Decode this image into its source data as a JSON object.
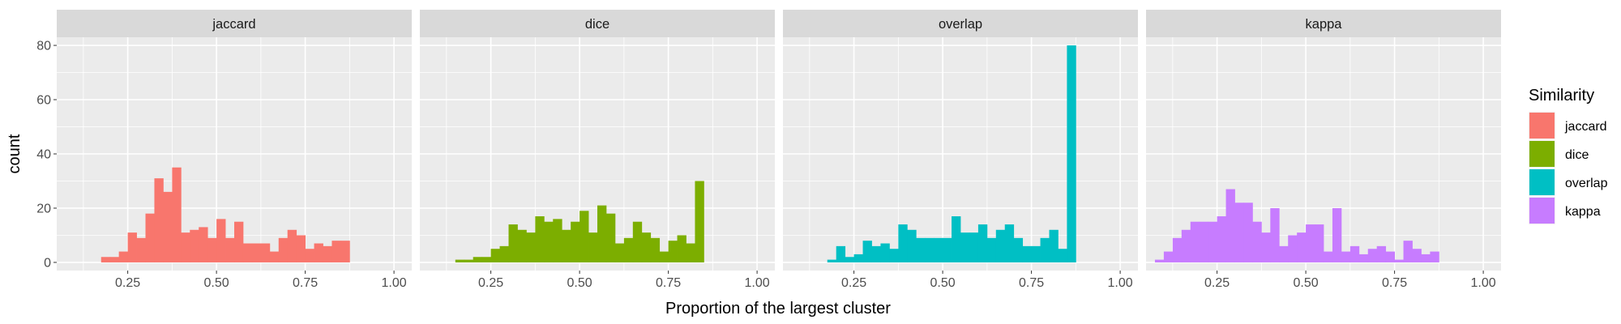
{
  "chart_data": {
    "type": "bar",
    "subtype": "faceted-histogram",
    "xlabel": "Proportion of the largest cluster",
    "ylabel": "count",
    "xlim": [
      0.05,
      1.05
    ],
    "ylim": [
      -3,
      83
    ],
    "xticks": [
      0.25,
      0.5,
      0.75,
      1.0
    ],
    "xtick_labels": [
      "0.25",
      "0.50",
      "0.75",
      "1.00"
    ],
    "yticks": [
      0,
      20,
      40,
      60,
      80
    ],
    "ytick_labels": [
      "0",
      "20",
      "40",
      "60",
      "80"
    ],
    "bin_width": 0.025,
    "grid": true,
    "legend": {
      "title": "Similarity",
      "position": "right",
      "entries": [
        "jaccard",
        "dice",
        "overlap",
        "kappa"
      ]
    },
    "colors": {
      "jaccard": "#F8766D",
      "dice": "#7CAE00",
      "overlap": "#00BFC4",
      "kappa": "#C77CFF"
    },
    "series": [
      {
        "name": "jaccard",
        "bins": [
          [
            0.175,
            2
          ],
          [
            0.2,
            2
          ],
          [
            0.225,
            4
          ],
          [
            0.25,
            11
          ],
          [
            0.275,
            9
          ],
          [
            0.3,
            18
          ],
          [
            0.325,
            31
          ],
          [
            0.35,
            26
          ],
          [
            0.375,
            35
          ],
          [
            0.4,
            11
          ],
          [
            0.425,
            12
          ],
          [
            0.45,
            13
          ],
          [
            0.475,
            9
          ],
          [
            0.5,
            16
          ],
          [
            0.525,
            9
          ],
          [
            0.55,
            15
          ],
          [
            0.575,
            7
          ],
          [
            0.6,
            7
          ],
          [
            0.625,
            7
          ],
          [
            0.65,
            4
          ],
          [
            0.675,
            9
          ],
          [
            0.7,
            12
          ],
          [
            0.725,
            10
          ],
          [
            0.75,
            5
          ],
          [
            0.775,
            7
          ],
          [
            0.8,
            6
          ],
          [
            0.825,
            8
          ],
          [
            0.85,
            8
          ]
        ]
      },
      {
        "name": "dice",
        "bins": [
          [
            0.15,
            1
          ],
          [
            0.175,
            1
          ],
          [
            0.2,
            2
          ],
          [
            0.225,
            2
          ],
          [
            0.25,
            5
          ],
          [
            0.275,
            6
          ],
          [
            0.3,
            14
          ],
          [
            0.325,
            12
          ],
          [
            0.35,
            11
          ],
          [
            0.375,
            17
          ],
          [
            0.4,
            15
          ],
          [
            0.425,
            16
          ],
          [
            0.45,
            12
          ],
          [
            0.475,
            15
          ],
          [
            0.5,
            19
          ],
          [
            0.525,
            11
          ],
          [
            0.55,
            21
          ],
          [
            0.575,
            18
          ],
          [
            0.6,
            7
          ],
          [
            0.625,
            9
          ],
          [
            0.65,
            15
          ],
          [
            0.675,
            11
          ],
          [
            0.7,
            9
          ],
          [
            0.725,
            4
          ],
          [
            0.75,
            8
          ],
          [
            0.775,
            10
          ],
          [
            0.8,
            7
          ],
          [
            0.825,
            30
          ]
        ]
      },
      {
        "name": "overlap",
        "bins": [
          [
            0.175,
            1
          ],
          [
            0.2,
            6
          ],
          [
            0.225,
            2
          ],
          [
            0.25,
            3
          ],
          [
            0.275,
            8
          ],
          [
            0.3,
            6
          ],
          [
            0.325,
            7
          ],
          [
            0.35,
            5
          ],
          [
            0.375,
            14
          ],
          [
            0.4,
            12
          ],
          [
            0.425,
            9
          ],
          [
            0.45,
            9
          ],
          [
            0.475,
            9
          ],
          [
            0.5,
            9
          ],
          [
            0.525,
            17
          ],
          [
            0.55,
            11
          ],
          [
            0.575,
            11
          ],
          [
            0.6,
            14
          ],
          [
            0.625,
            9
          ],
          [
            0.65,
            12
          ],
          [
            0.675,
            14
          ],
          [
            0.7,
            9
          ],
          [
            0.725,
            6
          ],
          [
            0.75,
            6
          ],
          [
            0.775,
            9
          ],
          [
            0.8,
            12
          ],
          [
            0.825,
            5
          ],
          [
            0.85,
            80
          ]
        ]
      },
      {
        "name": "kappa",
        "bins": [
          [
            0.075,
            1
          ],
          [
            0.1,
            4
          ],
          [
            0.125,
            9
          ],
          [
            0.15,
            12
          ],
          [
            0.175,
            15
          ],
          [
            0.2,
            15
          ],
          [
            0.225,
            15
          ],
          [
            0.25,
            17
          ],
          [
            0.275,
            27
          ],
          [
            0.3,
            22
          ],
          [
            0.325,
            22
          ],
          [
            0.35,
            15
          ],
          [
            0.375,
            11
          ],
          [
            0.4,
            20
          ],
          [
            0.425,
            6
          ],
          [
            0.45,
            10
          ],
          [
            0.475,
            11
          ],
          [
            0.5,
            14
          ],
          [
            0.525,
            14
          ],
          [
            0.55,
            4
          ],
          [
            0.575,
            20
          ],
          [
            0.6,
            4
          ],
          [
            0.625,
            6
          ],
          [
            0.65,
            3
          ],
          [
            0.675,
            5
          ],
          [
            0.7,
            6
          ],
          [
            0.725,
            4
          ],
          [
            0.75,
            1
          ],
          [
            0.775,
            8
          ],
          [
            0.8,
            5
          ],
          [
            0.825,
            3
          ],
          [
            0.85,
            4
          ]
        ]
      }
    ]
  }
}
